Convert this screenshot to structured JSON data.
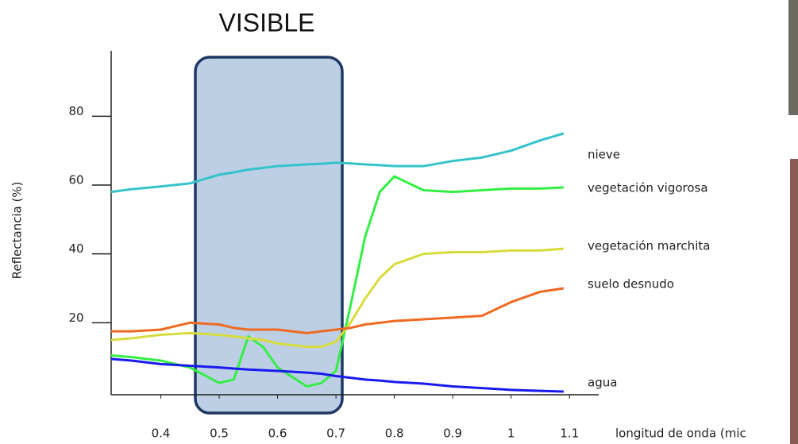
{
  "chart_data": {
    "type": "line",
    "title": "VISIBLE",
    "ylabel": "Reflectancia (%)",
    "xlabel": "longitud de onda (mic",
    "x": [
      0.315,
      0.35,
      0.4,
      0.45,
      0.5,
      0.525,
      0.55,
      0.575,
      0.6,
      0.65,
      0.675,
      0.7,
      0.725,
      0.75,
      0.775,
      0.8,
      0.85,
      0.9,
      0.95,
      1.0,
      1.05,
      1.09
    ],
    "series": [
      {
        "name": "nieve",
        "color": "#35c3cb",
        "values": [
          58,
          58.8,
          59.6,
          60.5,
          63,
          63.7,
          64.5,
          65,
          65.5,
          66,
          66.2,
          66.5,
          66.3,
          66,
          65.8,
          65.5,
          65.5,
          67,
          68,
          70,
          73,
          75
        ]
      },
      {
        "name": "vegetación vigorosa",
        "color": "#33ee44",
        "values": [
          10.5,
          10,
          9,
          7,
          2.5,
          3.5,
          16,
          13,
          7,
          1.5,
          2.5,
          6,
          25,
          45,
          58,
          62.5,
          58.5,
          58,
          58.5,
          59,
          59,
          59.3
        ]
      },
      {
        "name": "vegetación marchita",
        "color": "#d6dc3c",
        "values": [
          15,
          15.5,
          16.5,
          17,
          16.5,
          16,
          15.5,
          15,
          14,
          13,
          13,
          14.5,
          20,
          27,
          33,
          37,
          40,
          40.5,
          40.5,
          41,
          41,
          41.5
        ]
      },
      {
        "name": "suelo desnudo",
        "color": "#ee6a22",
        "values": [
          17.5,
          17.5,
          18,
          20,
          19.5,
          18.5,
          18,
          18,
          18,
          17,
          17.5,
          18,
          18.5,
          19.5,
          20,
          20.5,
          21,
          21.5,
          22,
          26,
          29,
          30
        ]
      },
      {
        "name": "agua",
        "color": "#1a1aee",
        "values": [
          9.5,
          9,
          8,
          7.5,
          7,
          6.7,
          6.4,
          6.2,
          6,
          5.5,
          5.2,
          4.5,
          4,
          3.5,
          3.2,
          2.8,
          2.3,
          1.5,
          1,
          0.5,
          0.2,
          0
        ]
      }
    ],
    "xlim": [
      0.315,
      1.15
    ],
    "xticks": [
      0.4,
      0.5,
      0.6,
      0.7,
      0.8,
      0.9,
      1,
      1.1
    ],
    "ylim": [
      0,
      99
    ],
    "yticks": [
      20,
      40,
      60,
      80
    ]
  }
}
